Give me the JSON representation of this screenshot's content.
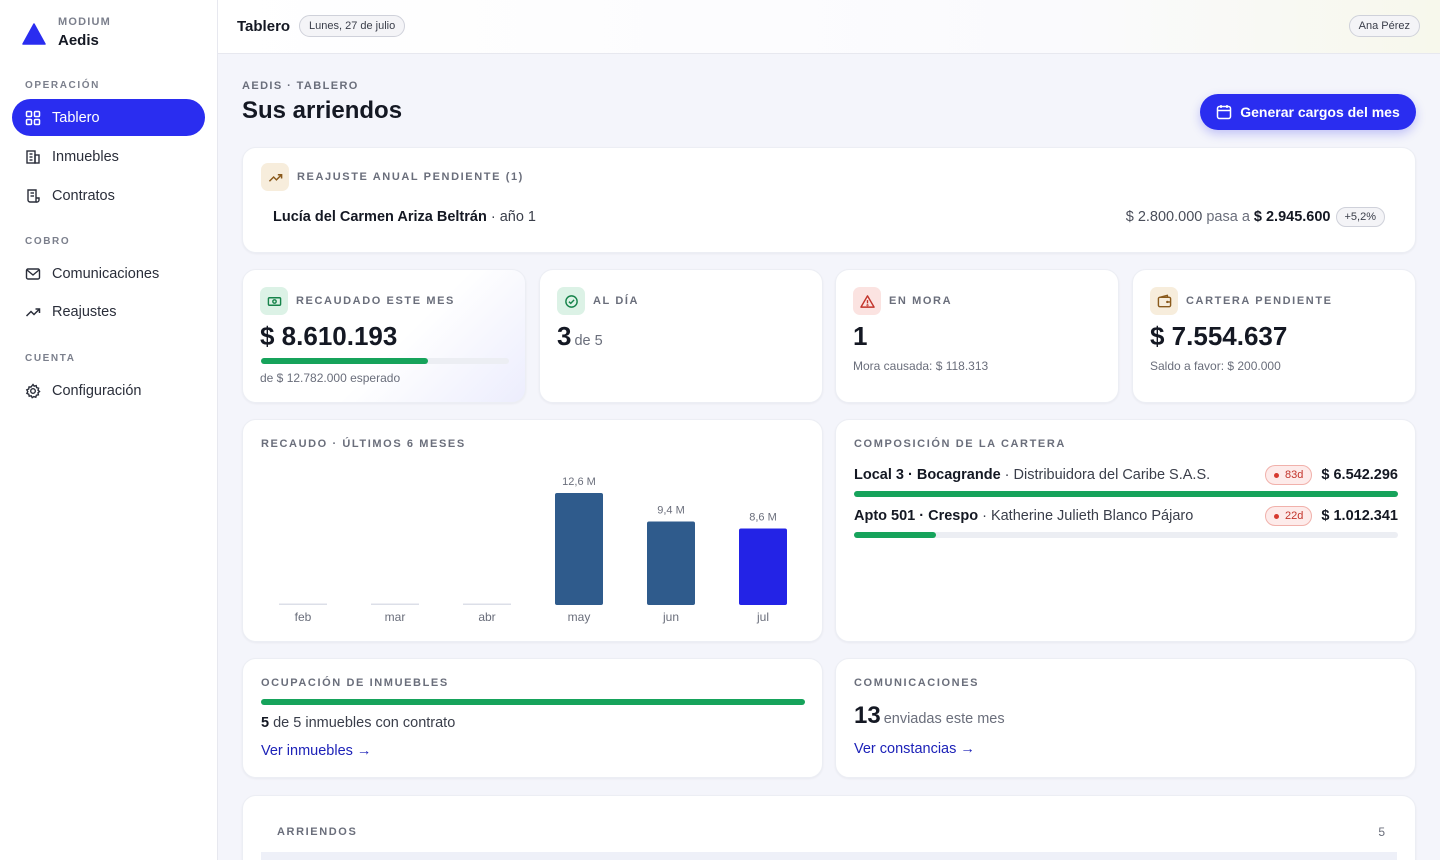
{
  "brand": {
    "sub": "MODIUM",
    "name": "Aedis"
  },
  "sidebar": {
    "sections": [
      {
        "title": "OPERACIÓN"
      },
      {
        "title": "COBRO"
      },
      {
        "title": "CUENTA"
      }
    ],
    "items": [
      {
        "label": "Tablero",
        "icon": "dashboard-icon",
        "active": true
      },
      {
        "label": "Inmuebles",
        "icon": "building-icon"
      },
      {
        "label": "Contratos",
        "icon": "contract-icon"
      },
      {
        "label": "Comunicaciones",
        "icon": "mail-icon"
      },
      {
        "label": "Reajustes",
        "icon": "trend-up-icon"
      },
      {
        "label": "Configuración",
        "icon": "gear-icon"
      }
    ]
  },
  "topbar": {
    "title": "Tablero",
    "date": "Lunes, 27 de julio",
    "user": "Ana Pérez"
  },
  "header": {
    "breadcrumb": "AEDIS · TABLERO",
    "title": "Sus arriendos",
    "action": "Generar cargos del mes"
  },
  "reajuste": {
    "label": "REAJUSTE ANUAL PENDIENTE (1)",
    "tenant": "Lucía del Carmen Ariza Beltrán",
    "year": "· año 1",
    "old_amount": "$ 2.800.000",
    "pasa": "pasa a",
    "new_amount": "$ 2.945.600",
    "delta": "+5,2%"
  },
  "kpis": {
    "recaudado": {
      "label": "RECAUDADO ESTE MES",
      "value": "$ 8.610.193",
      "progress": 0.673,
      "sub": "de $ 12.782.000 esperado",
      "color": "#16a35b"
    },
    "al_dia": {
      "label": "AL DÍA",
      "value": "3",
      "of": "de 5"
    },
    "en_mora": {
      "label": "EN MORA",
      "value": "1",
      "sub": "Mora causada: $ 118.313"
    },
    "cartera": {
      "label": "CARTERA PENDIENTE",
      "value": "$ 7.554.637",
      "sub": "Saldo a favor: $ 200.000"
    }
  },
  "chart_title": "RECAUDO · ÚLTIMOS 6 MESES",
  "chart_data": {
    "type": "bar",
    "categories": [
      "feb",
      "mar",
      "abr",
      "may",
      "jun",
      "jul"
    ],
    "values": [
      0,
      0,
      0,
      12.6,
      9.4,
      8.6
    ],
    "labels": [
      "",
      "",
      "",
      "12,6 M",
      "9,4 M",
      "8,6 M"
    ],
    "unit": "M",
    "colors": [
      "#2f5b8c",
      "#2f5b8c",
      "#2f5b8c",
      "#2f5b8c",
      "#2f5b8c",
      "#2323e6"
    ],
    "ylim": [
      0,
      12.6
    ],
    "grid": false
  },
  "composicion": {
    "label": "COMPOSICIÓN DE LA CARTERA",
    "rows": [
      {
        "property": "Local 3 · Bocagrande",
        "tenant": "· Distribuidora del Caribe S.A.S.",
        "days": "83d",
        "amount": "$ 6.542.296",
        "share": 1.0
      },
      {
        "property": "Apto 501 · Crespo",
        "tenant": "· Katherine Julieth Blanco Pájaro",
        "days": "22d",
        "amount": "$ 1.012.341",
        "share": 0.15
      }
    ]
  },
  "ocupacion": {
    "label": "OCUPACIÓN DE INMUEBLES",
    "count": "5",
    "text": "de 5 inmuebles con contrato",
    "link": "Ver inmuebles →",
    "ratio": 1.0
  },
  "comunicaciones": {
    "label": "COMUNICACIONES",
    "value": "13",
    "text": "enviadas este mes",
    "link": "Ver constancias →"
  },
  "arriendos": {
    "label": "ARRIENDOS",
    "count": "5"
  }
}
